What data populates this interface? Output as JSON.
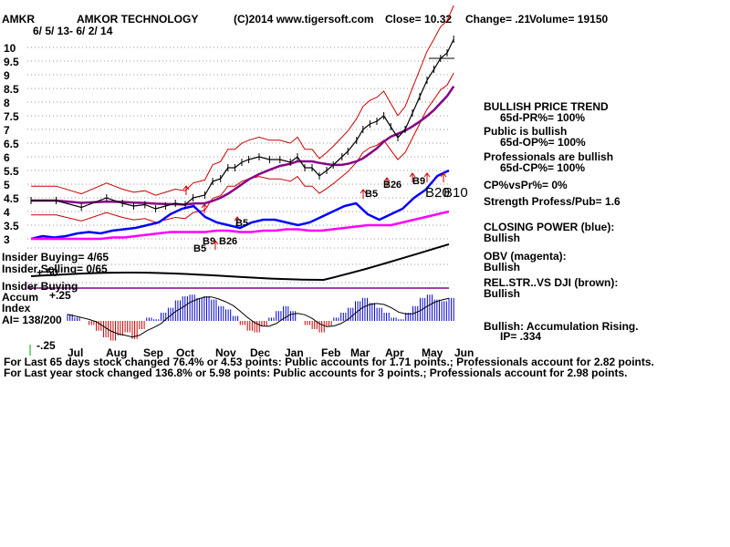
{
  "header": {
    "ticker": "AMKR",
    "company": "AMKOR TECHNOLOGY",
    "copyright": "(C)2014 www.tigersoft.com",
    "close": "Close=  10.32",
    "change": "Change= .21",
    "volume": "Volume= 19150",
    "date_range": "6/ 5/ 13- 6/ 2/ 14"
  },
  "panel_labels": {
    "insider_buying": "Insider Buying= 4/65",
    "insider_selling": "Insider Selling= 0/65",
    "insider_buying2": "Insider Buying",
    "accum_index_1": "Accum",
    "accum_index_2": "Index",
    "ai": "AI= 138/200",
    "acc_plus50": "+.50",
    "acc_plus25": "+.25",
    "acc_minus25": "-.25"
  },
  "right_panel": {
    "trend_title": "BULLISH PRICE TREND",
    "trend_value": "65d-PR%= 100%",
    "public_title": "Public is bullish",
    "public_value": "65d-OP%= 100%",
    "prof_title": "Professionals are bullish",
    "prof_value": "65d-CP%= 100%",
    "cp_vs_pr": "CP%vsPr%=  0%",
    "strength": "Strength Profess/Pub= 1.6",
    "closing_power_title": "CLOSING POWER (blue):",
    "closing_power_value": "Bullish",
    "obv_title": "OBV (magenta):",
    "obv_value": "Bullish",
    "relstr_title": "REL.STR..VS DJI (brown):",
    "relstr_value": "Bullish",
    "accum_title": "Bullish: Accumulation Rising.",
    "ip": "IP=  .334"
  },
  "footer": {
    "line1": "For Last 65 days stock changed  76.4% or  4.53 points:  Public accounts for  1.71 points.;  Professionals account for  2.82 points.",
    "line2": "For Last year stock changed  136.8% or  5.98 points:  Public accounts for  3 points.;  Professionals account for  2.98 points."
  },
  "colors": {
    "price": "#000000",
    "band": "#cc0000",
    "ma": "#880088",
    "closing_power": "#0000ff",
    "obv": "#ff00ff",
    "rel_str": "#000000",
    "accum_pos": "#0000cc",
    "accum_neg": "#cc0000",
    "grid": "#999999",
    "signal": "#cc0000",
    "insider_line": "#880088"
  },
  "chart_data": {
    "type": "line",
    "title": "AMKR  AMKOR TECHNOLOGY",
    "xlabel": "",
    "ylabel": "",
    "ylim": [
      3,
      10.5
    ],
    "y_ticks": [
      "10",
      "9.5",
      "9",
      "8.5",
      "8",
      "7.5",
      "7",
      "6.5",
      "6",
      "5.5",
      "5",
      "4.5",
      "4",
      "3.5",
      "3"
    ],
    "x_ticks": [
      "Jul",
      "Aug",
      "Sep",
      "Oct",
      "Nov",
      "Dec",
      "Jan",
      "Feb",
      "Mar",
      "Apr",
      "May",
      "Jun"
    ],
    "grid": true,
    "price_series": [
      [
        0,
        4.4
      ],
      [
        0.3,
        4.4
      ],
      [
        0.6,
        4.15
      ],
      [
        0.9,
        4.5
      ],
      [
        1.2,
        4.3
      ],
      [
        1.5,
        4.2
      ],
      [
        1.8,
        4.25
      ],
      [
        2.1,
        4.1
      ],
      [
        2.4,
        4.2
      ],
      [
        2.7,
        4.3
      ],
      [
        3.0,
        4.25
      ],
      [
        3.2,
        4.5
      ],
      [
        3.5,
        4.6
      ],
      [
        3.7,
        5.1
      ],
      [
        3.9,
        5.2
      ],
      [
        4.1,
        5.6
      ],
      [
        4.3,
        5.6
      ],
      [
        4.5,
        5.8
      ],
      [
        4.7,
        5.9
      ],
      [
        5.0,
        6.0
      ],
      [
        5.3,
        5.9
      ],
      [
        5.6,
        5.9
      ],
      [
        5.9,
        5.8
      ],
      [
        6.1,
        6.0
      ],
      [
        6.3,
        5.6
      ],
      [
        6.5,
        5.6
      ],
      [
        6.7,
        5.3
      ],
      [
        6.9,
        5.5
      ],
      [
        7.1,
        5.7
      ],
      [
        7.4,
        6.0
      ],
      [
        7.6,
        6.2
      ],
      [
        7.9,
        6.6
      ],
      [
        8.1,
        7.0
      ],
      [
        8.3,
        7.2
      ],
      [
        8.5,
        7.3
      ],
      [
        8.7,
        7.5
      ],
      [
        8.9,
        7.1
      ],
      [
        9.1,
        6.7
      ],
      [
        9.3,
        7.0
      ],
      [
        9.5,
        7.6
      ],
      [
        9.7,
        8.2
      ],
      [
        9.9,
        8.8
      ],
      [
        10.1,
        9.2
      ],
      [
        10.3,
        9.6
      ],
      [
        10.5,
        9.8
      ],
      [
        10.7,
        10.3
      ]
    ],
    "series": [
      {
        "name": "CLOSING POWER (blue)",
        "values": [
          3.0,
          3.1,
          3.05,
          3.1,
          3.2,
          3.25,
          3.2,
          3.3,
          3.35,
          3.4,
          3.5,
          3.6,
          3.9,
          4.1,
          4.2,
          3.8,
          3.6,
          3.5,
          3.4,
          3.6,
          3.7,
          3.7,
          3.6,
          3.5,
          3.6,
          3.8,
          4.0,
          4.2,
          4.3,
          3.9,
          3.7,
          3.9,
          4.1,
          4.5,
          4.8,
          5.3,
          5.5
        ]
      },
      {
        "name": "OBV (magenta)",
        "values": [
          3.0,
          3.0,
          3.0,
          3.0,
          3.0,
          3.0,
          3.0,
          3.05,
          3.05,
          3.1,
          3.15,
          3.2,
          3.25,
          3.25,
          3.25,
          3.25,
          3.3,
          3.3,
          3.25,
          3.25,
          3.3,
          3.3,
          3.35,
          3.35,
          3.3,
          3.3,
          3.35,
          3.4,
          3.45,
          3.5,
          3.5,
          3.5,
          3.6,
          3.7,
          3.8,
          3.9,
          4.0
        ]
      }
    ],
    "accum_values": [
      0.08,
      0.04,
      0.0,
      -0.05,
      -0.12,
      -0.2,
      -0.24,
      -0.18,
      -0.14,
      -0.22,
      -0.1,
      0.04,
      0.02,
      0.1,
      0.16,
      0.25,
      0.3,
      0.32,
      0.28,
      0.3,
      0.26,
      0.18,
      0.14,
      0.06,
      -0.05,
      -0.12,
      -0.14,
      -0.06,
      0.04,
      0.12,
      0.18,
      0.12,
      0.0,
      -0.05,
      -0.1,
      -0.14,
      -0.06,
      0.04,
      0.1,
      0.16,
      0.24,
      0.28,
      0.22,
      0.16,
      0.1,
      0.04,
      0.02,
      0.1,
      0.18,
      0.28,
      0.32,
      0.26,
      0.24,
      0.28
    ],
    "signals": [
      {
        "label": "B5",
        "color": "#cc0000"
      },
      {
        "label": "B9",
        "color": "#cc0000"
      },
      {
        "label": "B26",
        "color": "#cc0000"
      },
      {
        "label": "B5",
        "color": "#cc0000"
      },
      {
        "label": "B5",
        "color": "#cc0000"
      },
      {
        "label": "B26",
        "color": "#cc0000"
      },
      {
        "label": "B9",
        "color": "#cc0000"
      },
      {
        "label": "B20",
        "color": "#cc0000"
      },
      {
        "label": "B10",
        "color": "#cc0000"
      }
    ]
  }
}
